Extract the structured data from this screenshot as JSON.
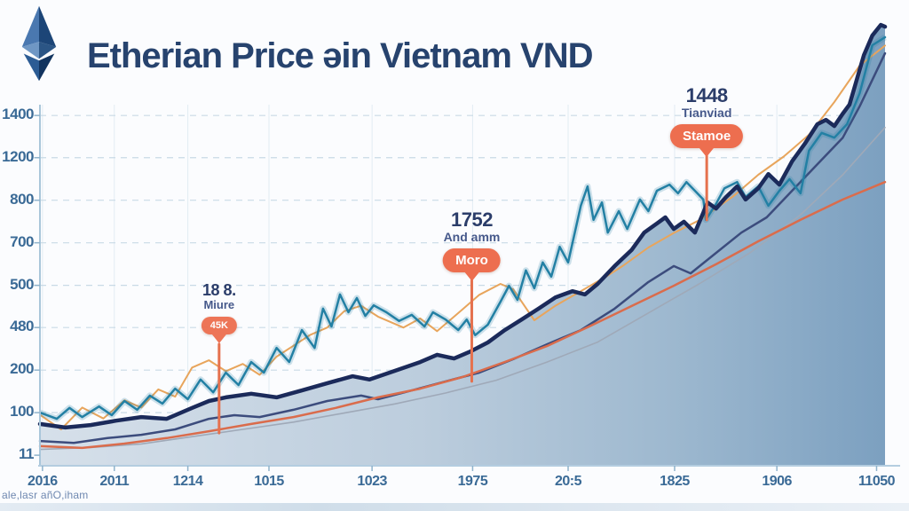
{
  "header": {
    "title": "Etherian Price əin Vietnam VND",
    "logo": "ethereum-logo"
  },
  "footer_note": "ale,lasr añO,iham",
  "annotations": [
    {
      "value": "18 8.",
      "subtitle": "Miure",
      "tag": "45K"
    },
    {
      "value": "1752",
      "subtitle": "And amm",
      "tag": "Moro"
    },
    {
      "value": "1448",
      "subtitle": "Tianviad",
      "tag": "Stamoe"
    }
  ],
  "colors": {
    "title": "#27436e",
    "axis_label": "#3a6a96",
    "tag_background": "#ed6e4f",
    "tag_text": "#ffffff",
    "annotation_line": "#e5714e",
    "grid_dashed": "#c9dae6",
    "axis_line": "#a9c6da"
  },
  "chart_data": {
    "type": "line",
    "title": "Etherian Price əin Vietnam VND",
    "ylabel": "",
    "xlabel": "",
    "grid": true,
    "legend": "none",
    "y_tick_labels": [
      "1400",
      "1200",
      "800",
      "700",
      "500",
      "480",
      "200",
      "100",
      "11"
    ],
    "y_tick_pos": [
      0.963,
      0.847,
      0.73,
      0.613,
      0.496,
      0.38,
      0.263,
      0.146,
      0.029
    ],
    "x_tick_labels": [
      "2016",
      "2011",
      "1214",
      "1015",
      "1023",
      "1975",
      "20:5",
      "1825",
      "1906",
      "11050"
    ],
    "x_tick_pos": [
      0.003,
      0.088,
      0.175,
      0.271,
      0.393,
      0.512,
      0.625,
      0.751,
      0.872,
      0.99
    ],
    "fill_gradient": [
      "#d6e0ea",
      "#bccddd",
      "#9db8cf",
      "#7ca0c0"
    ],
    "annotations": [
      {
        "x": 0.212,
        "line_end": 0.09
      },
      {
        "x": 0.511,
        "line_end": 0.232
      },
      {
        "x": 0.789,
        "line_end": 0.676
      }
    ],
    "series": [
      {
        "name": "mid-navy-line",
        "color": "#3c4c7d",
        "width": 2.5,
        "points": [
          [
            0,
            0.068
          ],
          [
            0.04,
            0.063
          ],
          [
            0.08,
            0.076
          ],
          [
            0.12,
            0.085
          ],
          [
            0.16,
            0.1
          ],
          [
            0.2,
            0.129
          ],
          [
            0.23,
            0.139
          ],
          [
            0.26,
            0.134
          ],
          [
            0.3,
            0.154
          ],
          [
            0.34,
            0.178
          ],
          [
            0.38,
            0.193
          ],
          [
            0.4,
            0.183
          ],
          [
            0.44,
            0.207
          ],
          [
            0.48,
            0.232
          ],
          [
            0.52,
            0.256
          ],
          [
            0.56,
            0.293
          ],
          [
            0.6,
            0.334
          ],
          [
            0.64,
            0.373
          ],
          [
            0.68,
            0.432
          ],
          [
            0.72,
            0.505
          ],
          [
            0.75,
            0.549
          ],
          [
            0.77,
            0.529
          ],
          [
            0.8,
            0.585
          ],
          [
            0.83,
            0.641
          ],
          [
            0.86,
            0.683
          ],
          [
            0.89,
            0.756
          ],
          [
            0.92,
            0.829
          ],
          [
            0.95,
            0.902
          ],
          [
            0.97,
            0.988
          ],
          [
            1,
            1.134
          ]
        ]
      },
      {
        "name": "gray-line",
        "color": "#9fa9b8",
        "width": 1.6,
        "points": [
          [
            0,
            0.045
          ],
          [
            0.06,
            0.05
          ],
          [
            0.12,
            0.06
          ],
          [
            0.18,
            0.08
          ],
          [
            0.24,
            0.1
          ],
          [
            0.3,
            0.12
          ],
          [
            0.36,
            0.145
          ],
          [
            0.42,
            0.17
          ],
          [
            0.48,
            0.2
          ],
          [
            0.54,
            0.235
          ],
          [
            0.6,
            0.285
          ],
          [
            0.66,
            0.34
          ],
          [
            0.72,
            0.42
          ],
          [
            0.78,
            0.5
          ],
          [
            0.84,
            0.585
          ],
          [
            0.9,
            0.69
          ],
          [
            0.95,
            0.8
          ],
          [
            1,
            0.93
          ]
        ]
      },
      {
        "name": "coral-line",
        "color": "#da6c4c",
        "width": 2.5,
        "points": [
          [
            0,
            0.054
          ],
          [
            0.05,
            0.049
          ],
          [
            0.1,
            0.061
          ],
          [
            0.15,
            0.076
          ],
          [
            0.2,
            0.095
          ],
          [
            0.25,
            0.115
          ],
          [
            0.3,
            0.134
          ],
          [
            0.35,
            0.159
          ],
          [
            0.4,
            0.188
          ],
          [
            0.45,
            0.212
          ],
          [
            0.5,
            0.244
          ],
          [
            0.55,
            0.285
          ],
          [
            0.6,
            0.329
          ],
          [
            0.65,
            0.383
          ],
          [
            0.7,
            0.439
          ],
          [
            0.75,
            0.495
          ],
          [
            0.8,
            0.554
          ],
          [
            0.85,
            0.617
          ],
          [
            0.9,
            0.676
          ],
          [
            0.95,
            0.732
          ],
          [
            1,
            0.78
          ]
        ]
      },
      {
        "name": "sandy-orange-line",
        "color": "#e8a55c",
        "width": 2,
        "points": [
          [
            0,
            0.14
          ],
          [
            0.025,
            0.1
          ],
          [
            0.05,
            0.16
          ],
          [
            0.075,
            0.13
          ],
          [
            0.1,
            0.18
          ],
          [
            0.12,
            0.16
          ],
          [
            0.14,
            0.21
          ],
          [
            0.16,
            0.19
          ],
          [
            0.18,
            0.27
          ],
          [
            0.2,
            0.29
          ],
          [
            0.22,
            0.26
          ],
          [
            0.24,
            0.28
          ],
          [
            0.26,
            0.25
          ],
          [
            0.28,
            0.3
          ],
          [
            0.3,
            0.33
          ],
          [
            0.32,
            0.36
          ],
          [
            0.34,
            0.38
          ],
          [
            0.36,
            0.425
          ],
          [
            0.38,
            0.44
          ],
          [
            0.4,
            0.41
          ],
          [
            0.43,
            0.38
          ],
          [
            0.45,
            0.405
          ],
          [
            0.47,
            0.37
          ],
          [
            0.5,
            0.43
          ],
          [
            0.52,
            0.47
          ],
          [
            0.545,
            0.5
          ],
          [
            0.56,
            0.485
          ],
          [
            0.585,
            0.4
          ],
          [
            0.61,
            0.44
          ],
          [
            0.64,
            0.48
          ],
          [
            0.67,
            0.52
          ],
          [
            0.69,
            0.55
          ],
          [
            0.72,
            0.6
          ],
          [
            0.75,
            0.64
          ],
          [
            0.78,
            0.675
          ],
          [
            0.82,
            0.74
          ],
          [
            0.85,
            0.8
          ],
          [
            0.88,
            0.85
          ],
          [
            0.91,
            0.91
          ],
          [
            0.94,
            1.0
          ],
          [
            0.97,
            1.1
          ],
          [
            1,
            1.155
          ]
        ]
      },
      {
        "name": "teal-volatile-line",
        "color": "#2380a4",
        "width": 2.5,
        "glow": true,
        "points": [
          [
            0,
            0.146
          ],
          [
            0.02,
            0.129
          ],
          [
            0.035,
            0.159
          ],
          [
            0.05,
            0.134
          ],
          [
            0.07,
            0.163
          ],
          [
            0.085,
            0.139
          ],
          [
            0.1,
            0.178
          ],
          [
            0.115,
            0.154
          ],
          [
            0.13,
            0.193
          ],
          [
            0.145,
            0.171
          ],
          [
            0.16,
            0.212
          ],
          [
            0.175,
            0.183
          ],
          [
            0.19,
            0.237
          ],
          [
            0.205,
            0.202
          ],
          [
            0.22,
            0.256
          ],
          [
            0.235,
            0.222
          ],
          [
            0.25,
            0.285
          ],
          [
            0.265,
            0.256
          ],
          [
            0.28,
            0.324
          ],
          [
            0.295,
            0.285
          ],
          [
            0.31,
            0.373
          ],
          [
            0.325,
            0.324
          ],
          [
            0.335,
            0.432
          ],
          [
            0.345,
            0.383
          ],
          [
            0.355,
            0.471
          ],
          [
            0.365,
            0.422
          ],
          [
            0.375,
            0.461
          ],
          [
            0.385,
            0.412
          ],
          [
            0.395,
            0.441
          ],
          [
            0.41,
            0.422
          ],
          [
            0.425,
            0.398
          ],
          [
            0.44,
            0.415
          ],
          [
            0.455,
            0.383
          ],
          [
            0.465,
            0.422
          ],
          [
            0.48,
            0.402
          ],
          [
            0.495,
            0.373
          ],
          [
            0.505,
            0.402
          ],
          [
            0.515,
            0.359
          ],
          [
            0.53,
            0.388
          ],
          [
            0.545,
            0.451
          ],
          [
            0.555,
            0.495
          ],
          [
            0.565,
            0.456
          ],
          [
            0.575,
            0.537
          ],
          [
            0.585,
            0.488
          ],
          [
            0.595,
            0.559
          ],
          [
            0.605,
            0.52
          ],
          [
            0.615,
            0.602
          ],
          [
            0.625,
            0.559
          ],
          [
            0.64,
            0.715
          ],
          [
            0.648,
            0.768
          ],
          [
            0.655,
            0.676
          ],
          [
            0.665,
            0.724
          ],
          [
            0.672,
            0.641
          ],
          [
            0.685,
            0.7
          ],
          [
            0.695,
            0.651
          ],
          [
            0.71,
            0.732
          ],
          [
            0.72,
            0.7
          ],
          [
            0.73,
            0.756
          ],
          [
            0.745,
            0.773
          ],
          [
            0.755,
            0.749
          ],
          [
            0.765,
            0.78
          ],
          [
            0.775,
            0.756
          ],
          [
            0.785,
            0.732
          ],
          [
            0.788,
            0.676
          ],
          [
            0.8,
            0.72
          ],
          [
            0.81,
            0.763
          ],
          [
            0.825,
            0.78
          ],
          [
            0.835,
            0.739
          ],
          [
            0.85,
            0.768
          ],
          [
            0.862,
            0.715
          ],
          [
            0.875,
            0.756
          ],
          [
            0.887,
            0.788
          ],
          [
            0.9,
            0.749
          ],
          [
            0.91,
            0.866
          ],
          [
            0.925,
            0.915
          ],
          [
            0.94,
            0.902
          ],
          [
            0.955,
            0.939
          ],
          [
            0.97,
            1.024
          ],
          [
            0.985,
            1.156
          ],
          [
            1,
            1.178
          ]
        ]
      },
      {
        "name": "navy-area-top-line",
        "color": "#1b2a5a",
        "width": 4.5,
        "fill": true,
        "points": [
          [
            0,
            0.115
          ],
          [
            0.03,
            0.105
          ],
          [
            0.06,
            0.112
          ],
          [
            0.09,
            0.124
          ],
          [
            0.12,
            0.134
          ],
          [
            0.15,
            0.129
          ],
          [
            0.18,
            0.159
          ],
          [
            0.2,
            0.178
          ],
          [
            0.22,
            0.188
          ],
          [
            0.25,
            0.198
          ],
          [
            0.28,
            0.188
          ],
          [
            0.31,
            0.207
          ],
          [
            0.34,
            0.227
          ],
          [
            0.37,
            0.246
          ],
          [
            0.39,
            0.237
          ],
          [
            0.42,
            0.261
          ],
          [
            0.45,
            0.285
          ],
          [
            0.47,
            0.305
          ],
          [
            0.49,
            0.295
          ],
          [
            0.51,
            0.315
          ],
          [
            0.53,
            0.339
          ],
          [
            0.55,
            0.373
          ],
          [
            0.57,
            0.402
          ],
          [
            0.59,
            0.432
          ],
          [
            0.61,
            0.463
          ],
          [
            0.63,
            0.48
          ],
          [
            0.645,
            0.471
          ],
          [
            0.66,
            0.5
          ],
          [
            0.68,
            0.549
          ],
          [
            0.7,
            0.593
          ],
          [
            0.715,
            0.641
          ],
          [
            0.73,
            0.666
          ],
          [
            0.74,
            0.683
          ],
          [
            0.75,
            0.651
          ],
          [
            0.762,
            0.671
          ],
          [
            0.775,
            0.641
          ],
          [
            0.79,
            0.724
          ],
          [
            0.8,
            0.707
          ],
          [
            0.812,
            0.739
          ],
          [
            0.825,
            0.768
          ],
          [
            0.835,
            0.732
          ],
          [
            0.85,
            0.763
          ],
          [
            0.862,
            0.802
          ],
          [
            0.875,
            0.773
          ],
          [
            0.89,
            0.837
          ],
          [
            0.905,
            0.885
          ],
          [
            0.92,
            0.939
          ],
          [
            0.93,
            0.951
          ],
          [
            0.94,
            0.934
          ],
          [
            0.95,
            0.968
          ],
          [
            0.958,
            0.993
          ],
          [
            0.965,
            1.049
          ],
          [
            0.975,
            1.129
          ],
          [
            0.985,
            1.183
          ],
          [
            0.995,
            1.212
          ],
          [
            1,
            1.207
          ]
        ]
      }
    ]
  }
}
